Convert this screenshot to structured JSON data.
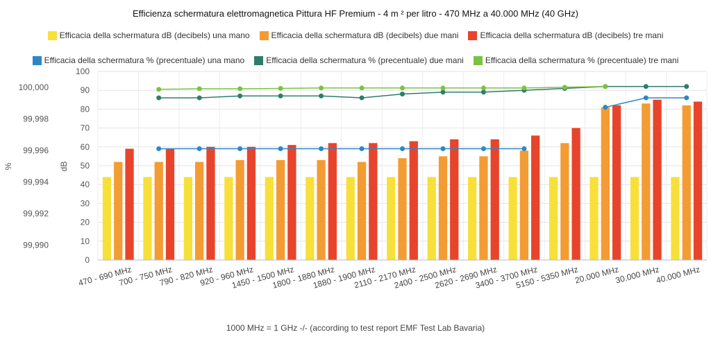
{
  "chart_data": {
    "type": "bar",
    "title": "Efficienza schermatura elettromagnetica Pittura HF Premium - 4 m ² per litro - 470 MHz a 40.000 MHz (40 GHz)",
    "footnote": "1000 MHz = 1 GHz -/- (according to test report EMF Test Lab Bavaria)",
    "categories": [
      "470 - 690 MHz",
      "700 - 750 MHz",
      "790 - 820 MHz",
      "920 - 960 MHz",
      "1450 - 1500 MHz",
      "1800 - 1880 MHz",
      "1880 - 1900 MHz",
      "2110 - 2170 MHz",
      "2400 - 2500 MHz",
      "2620 - 2690 MHz",
      "3400 - 3700 MHz",
      "5150 - 5350 MHz",
      "20.000 MHz",
      "30.000 MHz",
      "40.000 MHz"
    ],
    "y_left": {
      "label": "%",
      "ticks": [
        "100,000",
        "99,998",
        "99,996",
        "99,994",
        "99,992",
        "99,990"
      ]
    },
    "y_right": {
      "label": "dB",
      "ylim": [
        0,
        100
      ],
      "ticks": [
        "100",
        "90",
        "80",
        "70",
        "60",
        "50",
        "40",
        "30",
        "20",
        "10",
        "0"
      ]
    },
    "grid": true,
    "legend_position": "top",
    "bar_series": [
      {
        "name": "Efficacia della schermatura dB (decibels) una mano",
        "color": "#f7e03a",
        "values": [
          44,
          44,
          44,
          44,
          44,
          44,
          44,
          44,
          44,
          44,
          44,
          44,
          44,
          44,
          44
        ]
      },
      {
        "name": "Efficacia della schermatura dB (decibels) due mani",
        "color": "#f39c33",
        "values": [
          52,
          52,
          52,
          53,
          53,
          53,
          52,
          54,
          55,
          55,
          58,
          62,
          81,
          83,
          82
        ]
      },
      {
        "name": "Efficacia della schermatura dB (decibels) tre mani",
        "color": "#e8442c",
        "values": [
          59,
          59,
          60,
          60,
          61,
          62,
          62,
          63,
          64,
          64,
          66,
          70,
          82,
          85,
          84
        ]
      }
    ],
    "line_series": [
      {
        "name": "Efficacia della schermatura % (precentuale) una mano",
        "color": "#2e86c8",
        "values": [
          null,
          59,
          59,
          59,
          59,
          59,
          59,
          59,
          59,
          59,
          59,
          null,
          81,
          86,
          86
        ]
      },
      {
        "name": "Efficacia della schermatura % (precentuale) due mani",
        "color": "#2e7d6a",
        "values": [
          null,
          86,
          86,
          87,
          87,
          87,
          86,
          88,
          89,
          89,
          90,
          91,
          92,
          92,
          92
        ]
      },
      {
        "name": "Efficacia della schermatura % (precentuale) tre mani",
        "color": "#7cc242",
        "values": [
          null,
          90.5,
          90.8,
          90.8,
          91,
          91.2,
          91.2,
          91.2,
          91.2,
          91.2,
          91.2,
          91.6,
          92,
          null,
          null
        ]
      }
    ]
  }
}
